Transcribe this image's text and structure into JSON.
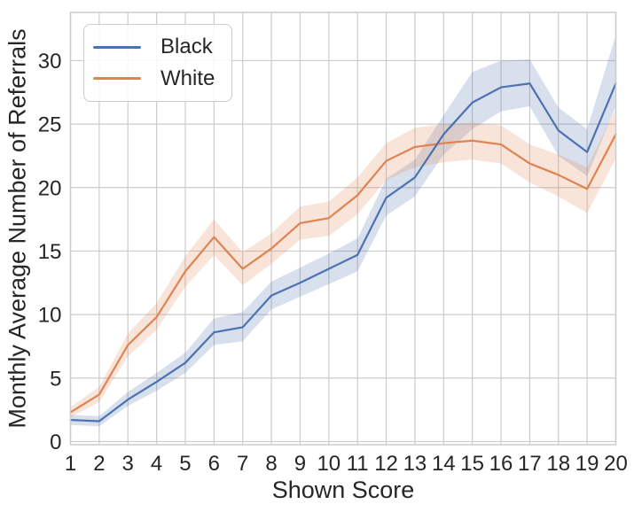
{
  "chart_data": {
    "type": "line",
    "title": "",
    "xlabel": "Shown Score",
    "ylabel": "Monthly Average Number of Referrals",
    "x": [
      1,
      2,
      3,
      4,
      5,
      6,
      7,
      8,
      9,
      10,
      11,
      12,
      13,
      14,
      15,
      16,
      17,
      18,
      19,
      20
    ],
    "series": [
      {
        "name": "Black",
        "color": "#4c72b0",
        "values": [
          1.7,
          1.6,
          3.3,
          4.7,
          6.2,
          8.6,
          9.0,
          11.5,
          12.5,
          13.6,
          14.7,
          19.2,
          20.8,
          24.2,
          26.7,
          27.9,
          28.2,
          24.5,
          22.8,
          28.2
        ],
        "ci_lower": [
          1.3,
          1.2,
          2.8,
          4.0,
          5.4,
          7.6,
          7.9,
          10.4,
          11.4,
          12.4,
          13.4,
          17.8,
          19.3,
          22.6,
          24.6,
          26.0,
          26.4,
          22.5,
          20.9,
          26.4
        ],
        "ci_upper": [
          2.1,
          2.0,
          3.9,
          5.4,
          7.0,
          9.7,
          10.2,
          12.6,
          13.7,
          14.8,
          16.0,
          20.7,
          22.2,
          25.7,
          29.1,
          30.0,
          30.1,
          26.3,
          24.6,
          32.0
        ]
      },
      {
        "name": "White",
        "color": "#dd8452",
        "values": [
          2.3,
          3.7,
          7.6,
          9.8,
          13.4,
          16.1,
          13.6,
          15.2,
          17.2,
          17.6,
          19.4,
          22.1,
          23.2,
          23.5,
          23.7,
          23.4,
          21.9,
          21.0,
          19.9,
          24.2
        ],
        "ci_lower": [
          1.9,
          3.1,
          6.7,
          8.8,
          12.2,
          14.7,
          12.3,
          14.0,
          15.9,
          16.2,
          17.9,
          20.6,
          21.6,
          22.0,
          22.2,
          21.9,
          20.4,
          19.3,
          18.0,
          22.3
        ],
        "ci_upper": [
          2.7,
          4.3,
          8.5,
          10.9,
          14.6,
          17.5,
          14.9,
          16.4,
          18.5,
          18.9,
          20.8,
          23.5,
          24.7,
          25.0,
          25.1,
          24.9,
          23.4,
          22.6,
          21.6,
          26.2
        ]
      }
    ],
    "xticks": [
      1,
      2,
      3,
      4,
      5,
      6,
      7,
      8,
      9,
      10,
      11,
      12,
      13,
      14,
      15,
      16,
      17,
      18,
      19,
      20
    ],
    "yticks": [
      0,
      5,
      10,
      15,
      20,
      25,
      30
    ],
    "xlim": [
      1,
      20
    ],
    "ylim": [
      -0.25,
      33.8
    ],
    "grid": true,
    "grid_color": "#cccccc",
    "spine_color": "#cccccc",
    "text_color": "#262626",
    "band_opacity": 0.22,
    "legend_position": "upper left"
  }
}
